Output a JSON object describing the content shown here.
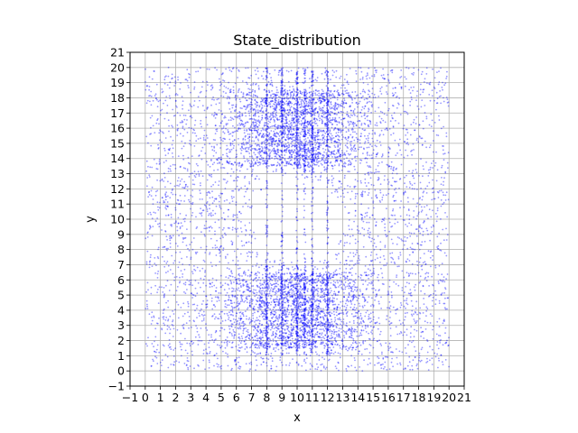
{
  "chart_data": {
    "type": "scatter",
    "title": "State_distribution",
    "xlabel": "x",
    "ylabel": "y",
    "xlim": [
      -1,
      21
    ],
    "ylim": [
      -1,
      21
    ],
    "xticks": [
      -1,
      0,
      1,
      2,
      3,
      4,
      5,
      6,
      7,
      8,
      9,
      10,
      11,
      12,
      13,
      14,
      15,
      16,
      17,
      18,
      19,
      20,
      21
    ],
    "yticks": [
      -1,
      0,
      1,
      2,
      3,
      4,
      5,
      6,
      7,
      8,
      9,
      10,
      11,
      12,
      13,
      14,
      15,
      16,
      17,
      18,
      19,
      20,
      21
    ],
    "grid": true,
    "marker_color": "#0000ff",
    "marker_alpha": 0.4,
    "distribution": {
      "domain": {
        "x": [
          0,
          20
        ],
        "y": [
          0,
          20
        ]
      },
      "empty_region": {
        "center": [
          10,
          10
        ],
        "radius": 3
      },
      "dense_bands": [
        {
          "y_range": [
            1.5,
            6.5
          ],
          "x_range": [
            6,
            14
          ]
        },
        {
          "y_range": [
            13.5,
            18.5
          ],
          "x_range": [
            6,
            14
          ]
        }
      ],
      "vertical_streaks_x": [
        8,
        9,
        10,
        10.5,
        11,
        12
      ],
      "approx_point_count": 9000
    }
  }
}
